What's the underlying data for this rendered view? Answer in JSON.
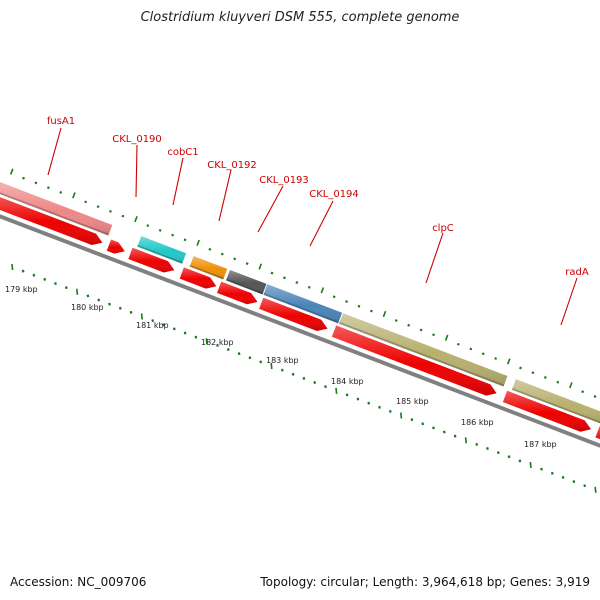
{
  "title": "Clostridium kluyveri DSM 555, complete genome",
  "footer": {
    "accession": "Accession: NC_009706",
    "summary": "Topology: circular; Length: 3,964,618 bp; Genes: 3,919"
  },
  "ruler": {
    "labels": [
      "179 kbp",
      "180 kbp",
      "181 kbp",
      "182 kbp",
      "183 kbp",
      "184 kbp",
      "185 kbp",
      "186 kbp",
      "187 kbp"
    ]
  },
  "gene_labels": [
    "fusA1",
    "CKL_0190",
    "cobC1",
    "CKL_0192",
    "CKL_0193",
    "CKL_0194",
    "clpC",
    "radA"
  ],
  "colors": {
    "label_red": "#cc0000",
    "tick_green": "#1a7a1a",
    "cds_red": "#ee0000",
    "backbone": "#808080",
    "fusA1": "#ee8888",
    "cobC1": "#22c8c8",
    "CKL_0192": "#f0900a",
    "CKL_0193": "#555555",
    "CKL_0194": "#4a84b8",
    "clpC": "#b8b070",
    "radA": "#b8b070"
  }
}
